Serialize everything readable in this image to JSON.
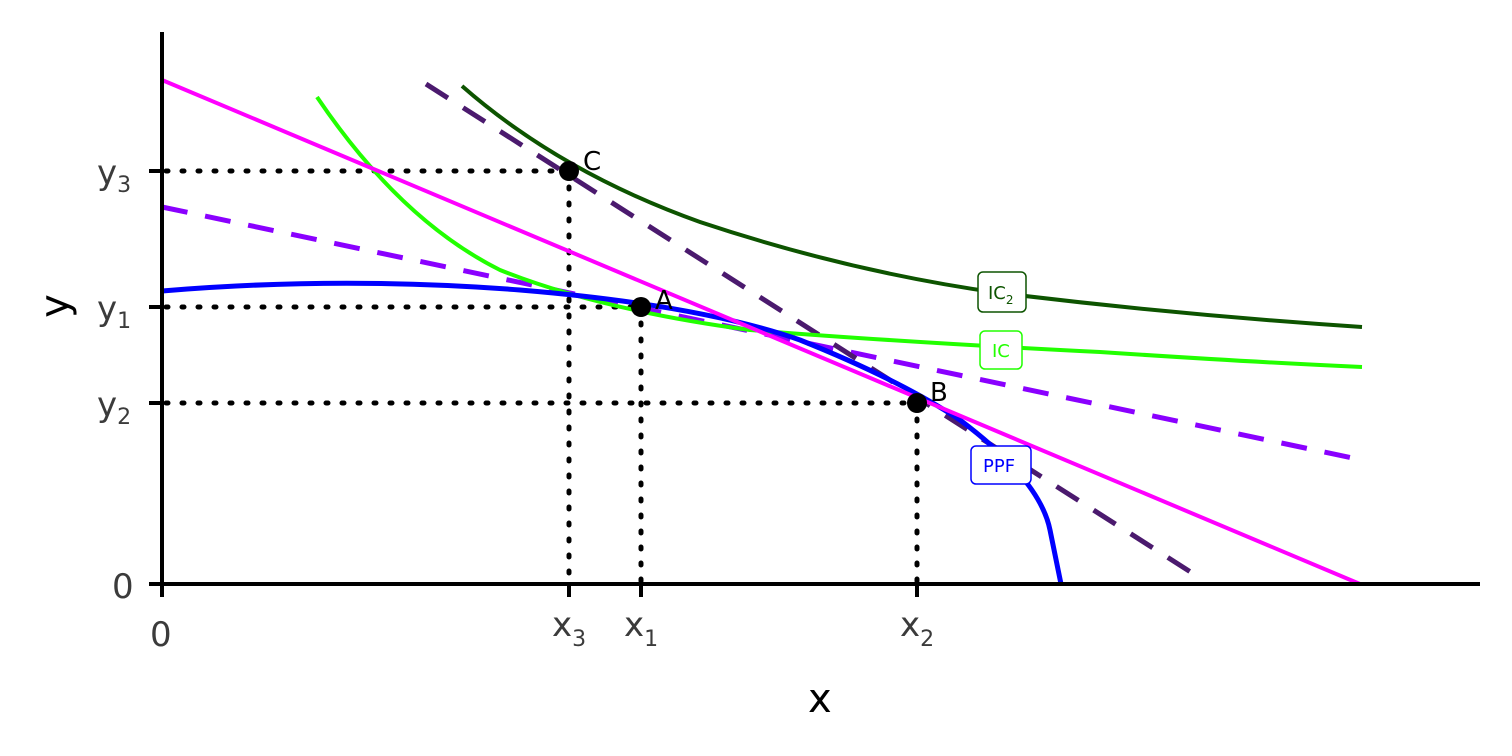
{
  "axes": {
    "x_title": "x",
    "y_title": "y",
    "x_origin_label": "0",
    "y_origin_label": "0"
  },
  "x_ticks": [
    {
      "base": "x",
      "sub": "3"
    },
    {
      "base": "x",
      "sub": "1"
    },
    {
      "base": "x",
      "sub": "2"
    }
  ],
  "y_ticks": [
    {
      "base": "y",
      "sub": "3"
    },
    {
      "base": "y",
      "sub": "1"
    },
    {
      "base": "y",
      "sub": "2"
    }
  ],
  "points": {
    "a": "A",
    "b": "B",
    "c": "C"
  },
  "curve_labels": {
    "ic2_base": "IC",
    "ic2_sub": "2",
    "ic": "IC",
    "ppf": "PPF"
  },
  "colors": {
    "ppf": "#0000ff",
    "ic": "#22ff00",
    "ic2": "#0d5400",
    "budget_line": "#ff00ff",
    "dashed_purple": "#8a00ff",
    "dashed_dark": "#4b1a6e",
    "guides": "#000000"
  }
}
